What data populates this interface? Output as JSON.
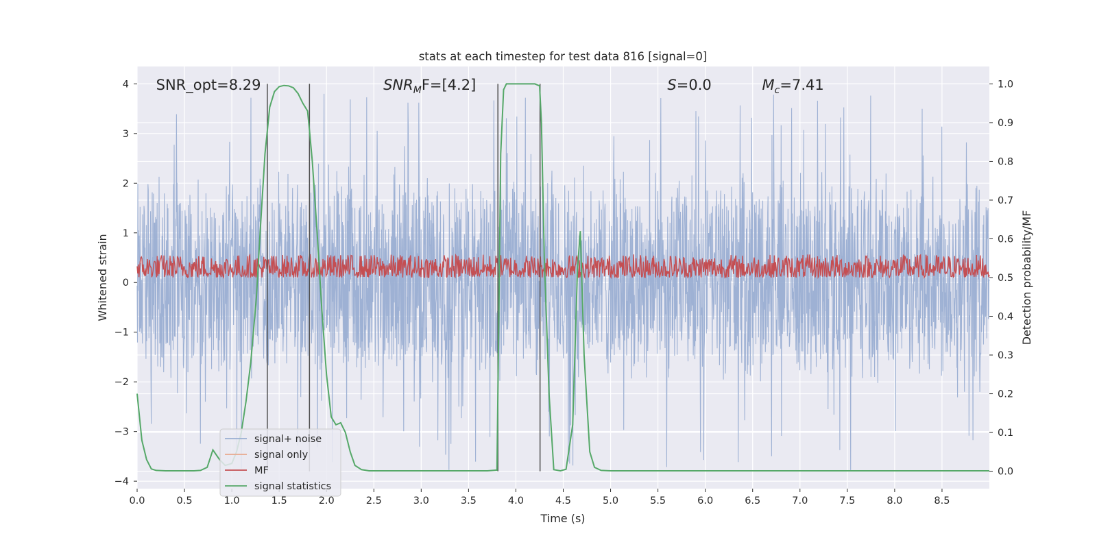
{
  "chart_data": {
    "type": "line",
    "title": "stats at each timestep for test data 816 [signal=0]",
    "xlabel": "Time (s)",
    "ylabel_left": "Whitened strain",
    "ylabel_right": "Detection probability/MF",
    "xlim": [
      0,
      9
    ],
    "ylim_left": [
      -4.15,
      4.35
    ],
    "ylim_right": [
      -0.045,
      1.045
    ],
    "x_ticks": [
      "0.0",
      "0.5",
      "1.0",
      "1.5",
      "2.0",
      "2.5",
      "3.0",
      "3.5",
      "4.0",
      "4.5",
      "5.0",
      "5.5",
      "6.0",
      "6.5",
      "7.0",
      "7.5",
      "8.0",
      "8.5"
    ],
    "y_ticks_left": [
      "4",
      "3",
      "2",
      "1",
      "0",
      "−1",
      "−2",
      "−3",
      "−4"
    ],
    "y_ticks_right": [
      "1.0",
      "0.9",
      "0.8",
      "0.7",
      "0.6",
      "0.5",
      "0.4",
      "0.3",
      "0.2",
      "0.1",
      "0.0"
    ],
    "grid": true,
    "legend_position": "lower-left",
    "colors": {
      "background": "#eaeaf2",
      "grid": "#ffffff",
      "noise": "#9aaed2",
      "signal_only": "#e8a98e",
      "mf": "#c44e52",
      "stats": "#55a868",
      "vlines": "#505050"
    },
    "series": [
      {
        "name": "signal+ noise",
        "role": "noise",
        "axis": "left",
        "mean": 0.0,
        "envelope": [
          -1.5,
          1.7
        ],
        "spike_range": [
          -3.8,
          3.8
        ]
      },
      {
        "name": "signal only",
        "role": "signal_only",
        "axis": "left",
        "values": []
      },
      {
        "name": "MF",
        "role": "mf",
        "axis": "right",
        "range": [
          0.5,
          0.56
        ]
      },
      {
        "name": "signal statistics",
        "role": "stats",
        "axis": "right",
        "x": [
          0.0,
          0.05,
          0.1,
          0.15,
          0.2,
          0.3,
          0.4,
          0.5,
          0.6,
          0.67,
          0.74,
          0.8,
          0.87,
          0.93,
          1.0,
          1.05,
          1.1,
          1.15,
          1.2,
          1.26,
          1.3,
          1.35,
          1.4,
          1.45,
          1.5,
          1.55,
          1.6,
          1.65,
          1.7,
          1.75,
          1.8,
          1.82,
          1.85,
          1.9,
          1.95,
          2.0,
          2.05,
          2.1,
          2.15,
          2.2,
          2.25,
          2.3,
          2.37,
          2.45,
          2.6,
          3.0,
          3.5,
          3.7,
          3.8,
          3.82,
          3.84,
          3.87,
          3.9,
          4.0,
          4.1,
          4.2,
          4.25,
          4.27,
          4.3,
          4.35,
          4.4,
          4.47,
          4.53,
          4.6,
          4.65,
          4.68,
          4.72,
          4.78,
          4.83,
          4.9,
          5.0,
          6.0,
          7.0,
          8.0,
          9.0
        ],
        "values": [
          0.2,
          0.08,
          0.03,
          0.006,
          0.002,
          0.001,
          0.001,
          0.001,
          0.001,
          0.002,
          0.01,
          0.055,
          0.03,
          0.015,
          0.02,
          0.05,
          0.1,
          0.18,
          0.28,
          0.45,
          0.62,
          0.82,
          0.94,
          0.98,
          0.993,
          0.996,
          0.995,
          0.99,
          0.975,
          0.95,
          0.93,
          0.88,
          0.8,
          0.62,
          0.42,
          0.25,
          0.14,
          0.12,
          0.125,
          0.1,
          0.05,
          0.015,
          0.004,
          0.001,
          0.001,
          0.001,
          0.001,
          0.001,
          0.003,
          0.4,
          0.82,
          0.985,
          1.0,
          1.0,
          1.0,
          1.0,
          0.995,
          0.9,
          0.55,
          0.2,
          0.004,
          0.001,
          0.005,
          0.12,
          0.52,
          0.62,
          0.3,
          0.05,
          0.01,
          0.002,
          0.001,
          0.001,
          0.001,
          0.001,
          0.001
        ]
      }
    ],
    "vertical_lines_x": [
      1.375,
      1.82,
      3.81,
      4.255
    ],
    "annotations": [
      {
        "text": "SNR_opt=8.29",
        "x": 0.2
      },
      {
        "base": "SNR",
        "sub": "M",
        "rest": "F=[4.2]",
        "x": 2.6
      },
      {
        "base": "S",
        "rest": "=0.0",
        "x": 5.6
      },
      {
        "base": "M",
        "sub": "c",
        "rest": "=7.41",
        "x": 6.6
      }
    ]
  }
}
